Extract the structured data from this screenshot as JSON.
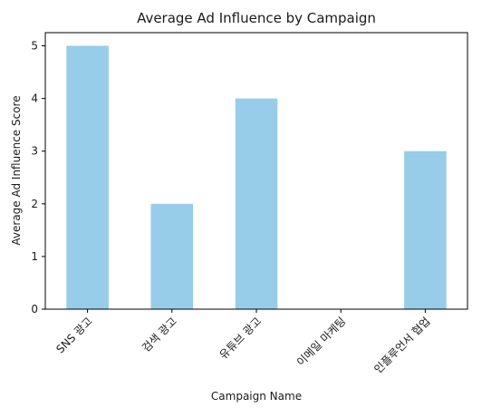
{
  "chart_data": {
    "type": "bar",
    "title": "Average Ad Influence by Campaign",
    "xlabel": "Campaign Name",
    "ylabel": "Average Ad Influence Score",
    "categories": [
      "SNS 광고",
      "검색 광고",
      "유튜브 광고",
      "이메일 마케팅",
      "인플루언서 협업"
    ],
    "values": [
      5,
      2,
      4,
      0,
      3
    ],
    "ylim": [
      0,
      5.25
    ],
    "yticks": [
      0,
      1,
      2,
      3,
      4,
      5
    ],
    "bar_color": "#97cde8",
    "grid": false,
    "legend": "none"
  }
}
